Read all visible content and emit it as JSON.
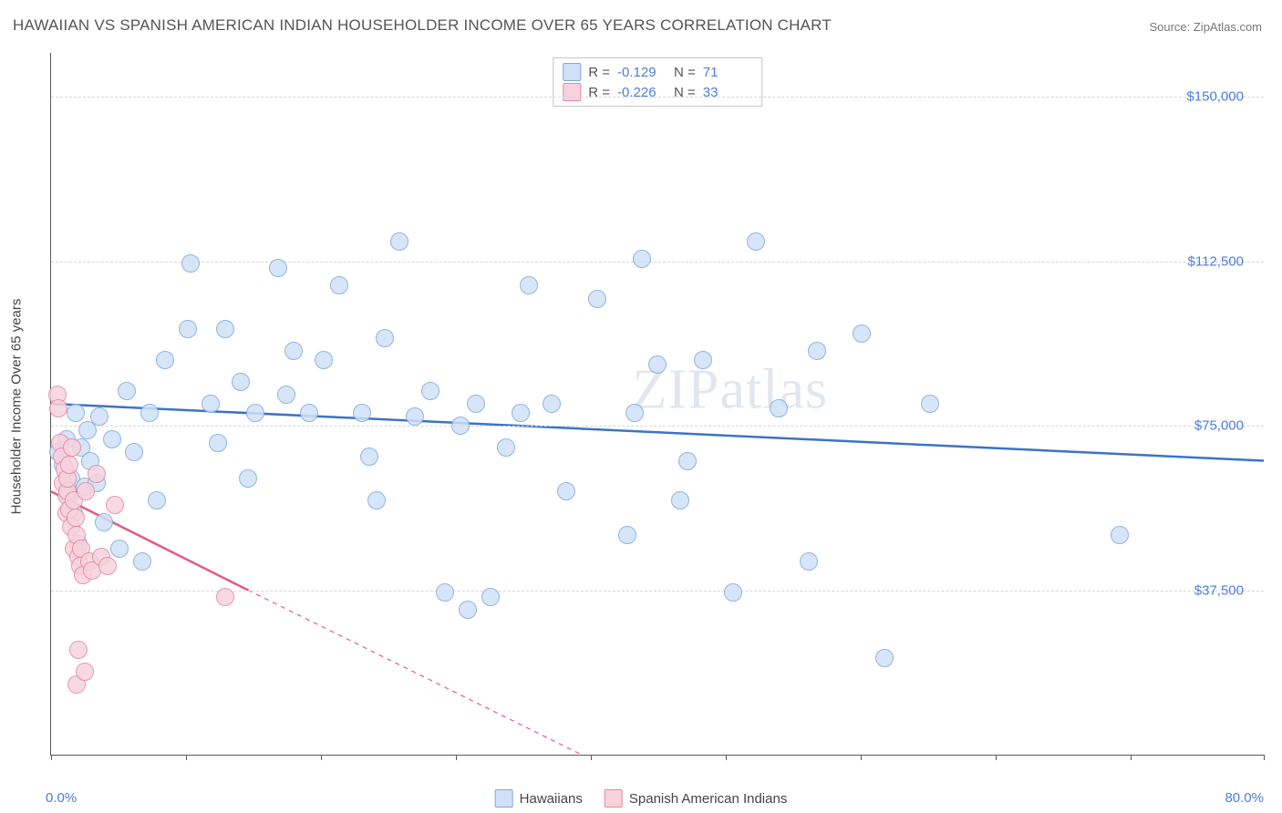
{
  "title": "HAWAIIAN VS SPANISH AMERICAN INDIAN HOUSEHOLDER INCOME OVER 65 YEARS CORRELATION CHART",
  "source": "Source: ZipAtlas.com",
  "watermark": "ZIPatlas",
  "chart": {
    "type": "scatter",
    "yaxis_label": "Householder Income Over 65 years",
    "background_color": "#ffffff",
    "grid_color": "#d6d6d6",
    "axis_color": "#5a5a5a",
    "tick_label_color": "#4a7fd8",
    "xlim": [
      0,
      80
    ],
    "ylim": [
      0,
      160000
    ],
    "xmin_label": "0.0%",
    "xmax_label": "80.0%",
    "yticks": [
      37500,
      75000,
      112500,
      150000
    ],
    "ytick_labels": [
      "$37,500",
      "$75,000",
      "$112,500",
      "$150,000"
    ],
    "xtick_positions": [
      0,
      8.9,
      17.8,
      26.7,
      35.6,
      44.5,
      53.4,
      62.3,
      71.2,
      80
    ],
    "marker_radius": 9,
    "marker_border_width": 1
  },
  "series": [
    {
      "name": "Hawaiians",
      "fill_color": "#cfe1f7",
      "border_color": "#7ea9d9",
      "line_color": "#3b73c8",
      "line_width": 2.5,
      "R": "-0.129",
      "N": "71",
      "trend": {
        "x1": 0,
        "y1": 80000,
        "x2": 80,
        "y2": 67000,
        "dashed": false,
        "extent_x": 80
      },
      "points": [
        [
          0.5,
          69000
        ],
        [
          0.8,
          66000
        ],
        [
          1.0,
          72000
        ],
        [
          1.2,
          59000
        ],
        [
          1.3,
          63000
        ],
        [
          1.5,
          55000
        ],
        [
          1.6,
          78000
        ],
        [
          1.8,
          48000
        ],
        [
          2.0,
          70000
        ],
        [
          2.2,
          61000
        ],
        [
          2.4,
          74000
        ],
        [
          2.6,
          67000
        ],
        [
          3.0,
          62000
        ],
        [
          3.2,
          77000
        ],
        [
          3.5,
          53000
        ],
        [
          4.0,
          72000
        ],
        [
          4.5,
          47000
        ],
        [
          5.0,
          83000
        ],
        [
          5.5,
          69000
        ],
        [
          6.5,
          78000
        ],
        [
          6.0,
          44000
        ],
        [
          7.5,
          90000
        ],
        [
          7.0,
          58000
        ],
        [
          9.0,
          97000
        ],
        [
          9.2,
          112000
        ],
        [
          10.5,
          80000
        ],
        [
          11.0,
          71000
        ],
        [
          11.5,
          97000
        ],
        [
          12.5,
          85000
        ],
        [
          13.0,
          63000
        ],
        [
          13.5,
          78000
        ],
        [
          15.0,
          111000
        ],
        [
          15.5,
          82000
        ],
        [
          16.0,
          92000
        ],
        [
          17.0,
          78000
        ],
        [
          18.0,
          90000
        ],
        [
          19.0,
          107000
        ],
        [
          20.5,
          78000
        ],
        [
          21.0,
          68000
        ],
        [
          21.5,
          58000
        ],
        [
          22.0,
          95000
        ],
        [
          23.0,
          117000
        ],
        [
          24.0,
          77000
        ],
        [
          25.0,
          83000
        ],
        [
          26.0,
          37000
        ],
        [
          27.0,
          75000
        ],
        [
          27.5,
          33000
        ],
        [
          28.0,
          80000
        ],
        [
          29.0,
          36000
        ],
        [
          30.0,
          70000
        ],
        [
          31.0,
          78000
        ],
        [
          31.5,
          107000
        ],
        [
          33.0,
          80000
        ],
        [
          34.0,
          60000
        ],
        [
          36.0,
          104000
        ],
        [
          38.0,
          50000
        ],
        [
          38.5,
          78000
        ],
        [
          39.0,
          113000
        ],
        [
          40.0,
          89000
        ],
        [
          41.5,
          58000
        ],
        [
          42.0,
          67000
        ],
        [
          43.0,
          90000
        ],
        [
          45.0,
          37000
        ],
        [
          46.5,
          117000
        ],
        [
          48.0,
          79000
        ],
        [
          50.0,
          44000
        ],
        [
          50.5,
          92000
        ],
        [
          53.5,
          96000
        ],
        [
          55.0,
          22000
        ],
        [
          58.0,
          80000
        ],
        [
          70.5,
          50000
        ]
      ]
    },
    {
      "name": "Spanish American Indians",
      "fill_color": "#f7d2dd",
      "border_color": "#e488a3",
      "line_color": "#e55a8a",
      "line_width": 2.5,
      "R": "-0.226",
      "N": "33",
      "trend": {
        "x1": 0,
        "y1": 60000,
        "x2": 35,
        "y2": 0,
        "dashed": true,
        "extent_x": 13,
        "solid_end_x": 13,
        "solid_end_y": 37500
      },
      "points": [
        [
          0.4,
          82000
        ],
        [
          0.5,
          79000
        ],
        [
          0.6,
          71000
        ],
        [
          0.7,
          68000
        ],
        [
          0.8,
          62000
        ],
        [
          0.9,
          65000
        ],
        [
          1.0,
          59000
        ],
        [
          1.0,
          55000
        ],
        [
          1.1,
          60000
        ],
        [
          1.1,
          63000
        ],
        [
          1.2,
          56000
        ],
        [
          1.2,
          66000
        ],
        [
          1.3,
          52000
        ],
        [
          1.4,
          70000
        ],
        [
          1.5,
          47000
        ],
        [
          1.5,
          58000
        ],
        [
          1.6,
          54000
        ],
        [
          1.7,
          50000
        ],
        [
          1.8,
          45000
        ],
        [
          1.9,
          43000
        ],
        [
          2.0,
          47000
        ],
        [
          2.1,
          41000
        ],
        [
          2.3,
          60000
        ],
        [
          2.5,
          44000
        ],
        [
          2.7,
          42000
        ],
        [
          3.0,
          64000
        ],
        [
          3.3,
          45000
        ],
        [
          3.7,
          43000
        ],
        [
          4.2,
          57000
        ],
        [
          1.8,
          24000
        ],
        [
          1.7,
          16000
        ],
        [
          2.2,
          19000
        ],
        [
          11.5,
          36000
        ]
      ]
    }
  ]
}
